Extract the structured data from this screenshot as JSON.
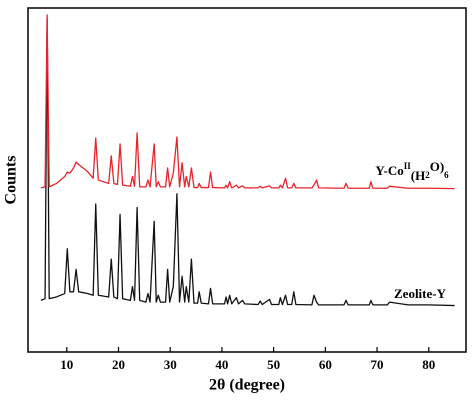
{
  "chart_data": {
    "type": "line",
    "x_label": "2θ (degree)",
    "y_label": "Counts",
    "xlim": [
      2.5,
      87.2
    ],
    "ylim": [
      0,
      100
    ],
    "xticks": [
      10,
      20,
      30,
      40,
      50,
      60,
      70,
      80
    ],
    "x": [
      5,
      5.8,
      6.2,
      6.6,
      8,
      9.6,
      10.1,
      10.6,
      11.3,
      11.8,
      12.3,
      14,
      15.1,
      15.6,
      16.1,
      18.1,
      18.6,
      19.1,
      19.8,
      20.3,
      20.8,
      22.3,
      22.7,
      23.1,
      23.6,
      24.1,
      25.3,
      25.7,
      26.1,
      26.9,
      27.3,
      27.7,
      28.1,
      29.1,
      29.5,
      29.9,
      30.6,
      31.3,
      31.8,
      32.3,
      32.8,
      33.1,
      33.6,
      34.1,
      34.6,
      35.3,
      35.6,
      36,
      37.4,
      37.8,
      38.2,
      40.5,
      40.8,
      41.1,
      41.5,
      41.9,
      42.8,
      43.2,
      44,
      44.4,
      47,
      47.4,
      47.8,
      49.2,
      49.6,
      51,
      51.3,
      51.7,
      52.3,
      52.7,
      53.5,
      53.9,
      54.3,
      57.4,
      57.8,
      58.3,
      58.7,
      63.6,
      64,
      64.4,
      68.5,
      68.8,
      69.2,
      72,
      72.4,
      76,
      80,
      85
    ],
    "series": [
      {
        "name": "Zeolite-Y",
        "color": "#111111",
        "values": [
          15,
          15.5,
          97,
          15.5,
          16,
          17,
          30,
          17.5,
          17.5,
          24,
          17.5,
          17,
          16.5,
          43,
          16.5,
          16,
          27,
          16,
          15.5,
          40,
          15.5,
          15,
          19,
          15,
          42,
          15,
          14.5,
          17,
          14.5,
          38,
          14.5,
          16.5,
          14.5,
          14.5,
          24,
          14.5,
          19,
          46,
          14.5,
          22,
          14.5,
          19,
          14.5,
          27,
          14.2,
          14.2,
          17.5,
          14.2,
          14,
          18.5,
          14,
          14,
          16,
          14,
          16.5,
          14,
          15.8,
          14,
          15,
          14,
          13.8,
          14.8,
          13.8,
          15.3,
          13.8,
          13.8,
          15.8,
          13.8,
          16.5,
          13.8,
          13.8,
          17.5,
          13.8,
          13.7,
          16.5,
          14.5,
          13.7,
          13.7,
          15,
          13.7,
          13.7,
          15,
          13.7,
          13.7,
          14.5,
          13.7,
          13.7,
          13.5
        ]
      },
      {
        "name": [
          "Y-Co",
          "II",
          "(H",
          "2",
          "O)",
          "6"
        ],
        "color": "#e8242a",
        "values": [
          47.7,
          48,
          98,
          48,
          49,
          51,
          52.3,
          52,
          53.5,
          55.2,
          54.5,
          52.5,
          50.5,
          62.2,
          50,
          49,
          57,
          49,
          48.7,
          60.5,
          48.5,
          48.2,
          51,
          48.2,
          63.7,
          48,
          48,
          50,
          48,
          60.5,
          48,
          49.5,
          48,
          48,
          53.5,
          48,
          52,
          62.5,
          48,
          55,
          48,
          51,
          48,
          53.5,
          47.8,
          47.8,
          49,
          47.8,
          47.8,
          52.3,
          47.8,
          47.7,
          48.5,
          47.7,
          49.5,
          47.7,
          48.5,
          47.7,
          48.3,
          47.7,
          47.7,
          48.2,
          47.7,
          48.3,
          47.7,
          47.7,
          48.5,
          47.7,
          50.5,
          47.7,
          47.7,
          49,
          47.7,
          47.7,
          48.5,
          50,
          47.7,
          47.6,
          49,
          47.6,
          47.6,
          49.5,
          47.6,
          47.6,
          48.2,
          47.6,
          47.6,
          47.5
        ]
      }
    ]
  }
}
